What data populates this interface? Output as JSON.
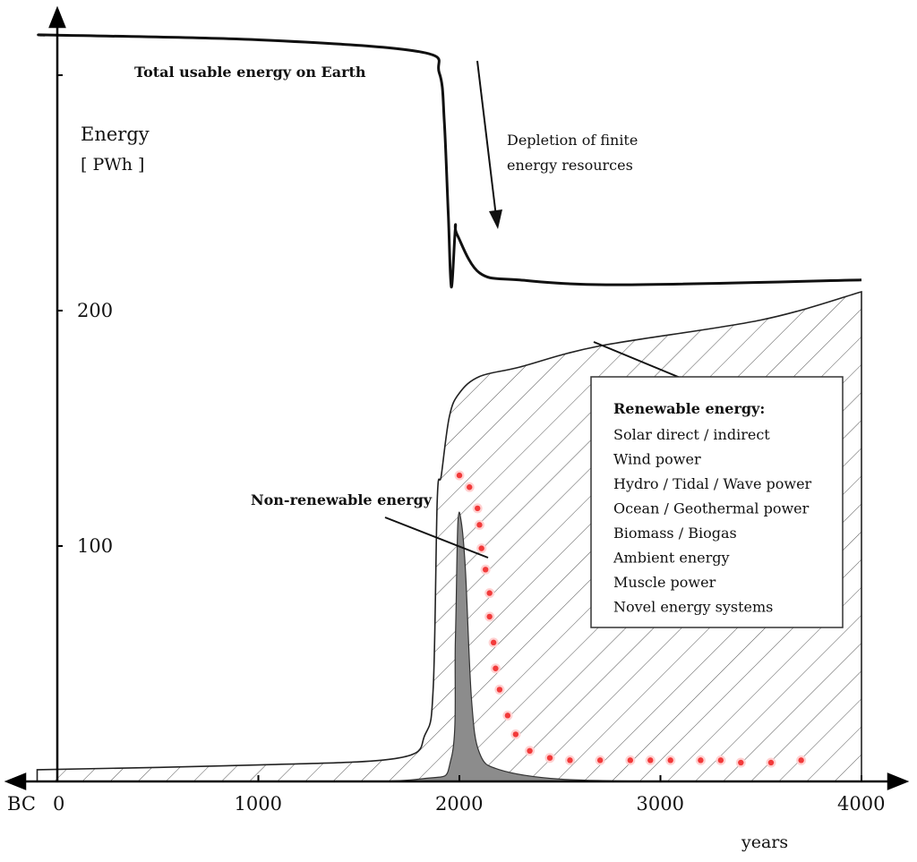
{
  "chart_data": {
    "type": "area",
    "title": "",
    "ylabel": "Energy",
    "yunit": "[ PWh ]",
    "xlabel": "years",
    "xlim": [
      0,
      4000
    ],
    "ylim": [
      0,
      310
    ],
    "x_origin_label": "BC",
    "x_ticks": [
      {
        "x": 0,
        "label": "0"
      },
      {
        "x": 1000,
        "label": "1000"
      },
      {
        "x": 2000,
        "label": "2000"
      },
      {
        "x": 3000,
        "label": "3000"
      },
      {
        "x": 4000,
        "label": "4000"
      }
    ],
    "y_ticks": [
      {
        "y": 100,
        "label": "100"
      },
      {
        "y": 200,
        "label": "200"
      },
      {
        "y": 300,
        "label": ""
      }
    ],
    "series": [
      {
        "name": "Total usable energy on Earth",
        "style": "line",
        "color": "#111111",
        "points": [
          [
            -60,
            317
          ],
          [
            0,
            317
          ],
          [
            1000,
            315
          ],
          [
            1800,
            310
          ],
          [
            1900,
            301
          ],
          [
            1925,
            280
          ],
          [
            1945,
            240
          ],
          [
            1960,
            210
          ],
          [
            1980,
            235
          ],
          [
            1990,
            232
          ],
          [
            2100,
            216
          ],
          [
            2300,
            213
          ],
          [
            2800,
            211
          ],
          [
            4000,
            213
          ]
        ]
      },
      {
        "name": "Renewable energy:",
        "style": "hatched-area",
        "color": "#555555",
        "points": [
          [
            -100,
            5
          ],
          [
            1000,
            7
          ],
          [
            1700,
            10
          ],
          [
            1830,
            20
          ],
          [
            1870,
            40
          ],
          [
            1890,
            120
          ],
          [
            1910,
            130
          ],
          [
            1950,
            155
          ],
          [
            2000,
            165
          ],
          [
            2100,
            172
          ],
          [
            2300,
            176
          ],
          [
            2700,
            185
          ],
          [
            3500,
            196
          ],
          [
            4000,
            208
          ]
        ]
      },
      {
        "name": "Non-renewable energy",
        "style": "filled-area",
        "color": "#8c8c8c",
        "points": [
          [
            -100,
            0
          ],
          [
            1000,
            0
          ],
          [
            1800,
            1
          ],
          [
            1960,
            10
          ],
          [
            1980,
            60
          ],
          [
            1992,
            109
          ],
          [
            2008,
            111
          ],
          [
            2030,
            90
          ],
          [
            2060,
            35
          ],
          [
            2100,
            12
          ],
          [
            2200,
            5
          ],
          [
            2500,
            1
          ],
          [
            3000,
            0
          ]
        ]
      },
      {
        "name": "",
        "style": "dotted",
        "color": "#f23a3a",
        "points": [
          [
            2000,
            130
          ],
          [
            2050,
            125
          ],
          [
            2090,
            116
          ],
          [
            2100,
            109
          ],
          [
            2110,
            99
          ],
          [
            2130,
            90
          ],
          [
            2150,
            80
          ],
          [
            2150,
            70
          ],
          [
            2170,
            59
          ],
          [
            2180,
            48
          ],
          [
            2200,
            39
          ],
          [
            2240,
            28
          ],
          [
            2280,
            20
          ],
          [
            2350,
            13
          ],
          [
            2450,
            10
          ],
          [
            2550,
            9
          ],
          [
            2700,
            9
          ],
          [
            2850,
            9
          ],
          [
            2950,
            9
          ],
          [
            3050,
            9
          ],
          [
            3200,
            9
          ],
          [
            3300,
            9
          ],
          [
            3400,
            8
          ],
          [
            3550,
            8
          ],
          [
            3700,
            9
          ]
        ]
      }
    ],
    "annotations": {
      "total_label": "Total usable energy on Earth",
      "depletion_line1": "Depletion of finite",
      "depletion_line2": "energy resources",
      "nonrenewable_label": "Non-renewable energy",
      "renewable_title": "Renewable energy:",
      "renewable_items": [
        "Solar direct / indirect",
        "Wind power",
        "Hydro / Tidal / Wave power",
        "Ocean / Geothermal power",
        "Biomass / Biogas",
        "Ambient energy",
        "Muscle power",
        "Novel energy systems"
      ]
    },
    "grid": false,
    "legend": "none"
  }
}
